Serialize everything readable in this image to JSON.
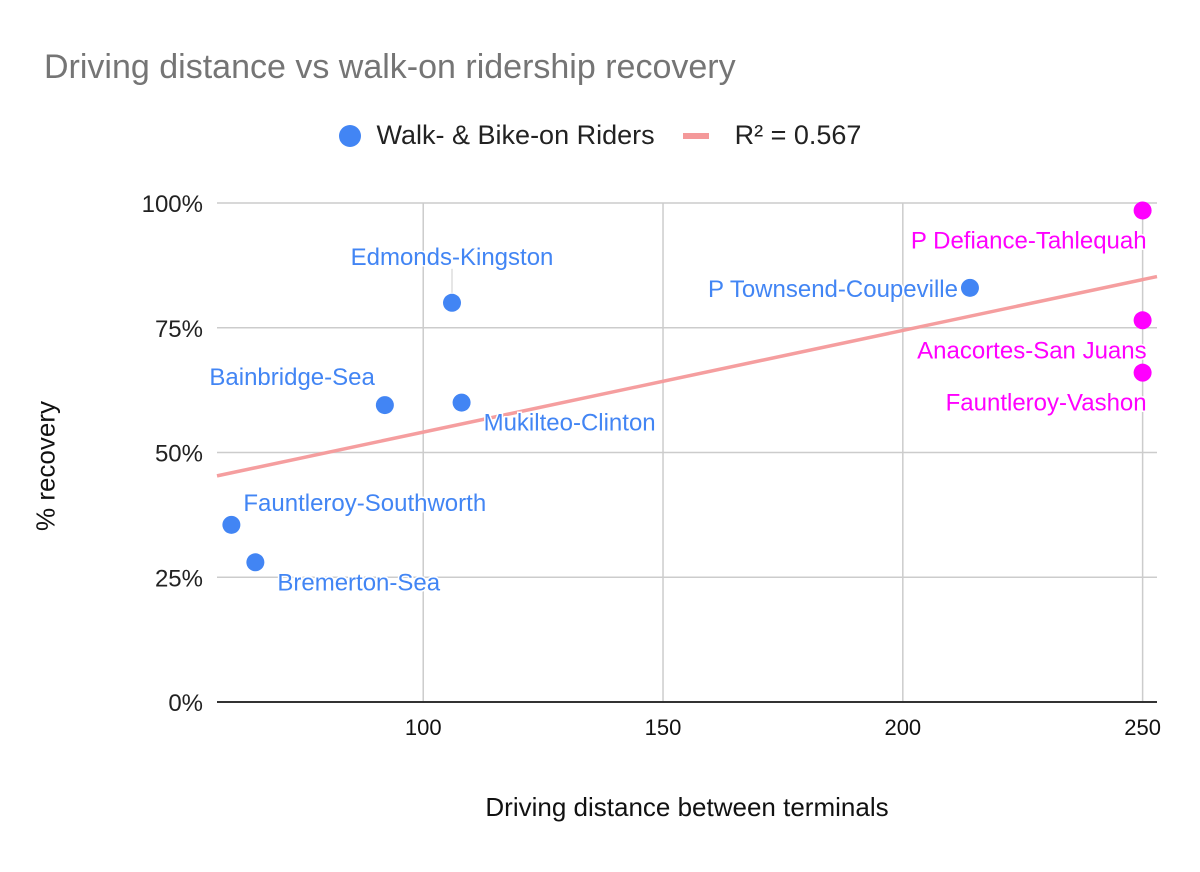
{
  "chart_data": {
    "type": "scatter",
    "title": "Driving distance vs walk-on ridership recovery",
    "xlabel": "Driving distance between terminals",
    "ylabel": "% recovery",
    "xlim": [
      57,
      253
    ],
    "ylim": [
      0,
      100
    ],
    "x_ticks": [
      100,
      150,
      200,
      250
    ],
    "x_tick_labels": [
      "100",
      "150",
      "200",
      "250"
    ],
    "y_ticks": [
      0,
      25,
      50,
      75,
      100
    ],
    "y_tick_labels": [
      "0%",
      "25%",
      "50%",
      "75%",
      "100%"
    ],
    "grid": true,
    "legend_position": "top",
    "legend": [
      {
        "label": "Walk- & Bike-on Riders",
        "kind": "dot",
        "color": "#4285f4"
      },
      {
        "label": "R² = 0.567",
        "kind": "line",
        "color": "#f4999a"
      }
    ],
    "series": [
      {
        "name": "Walk- & Bike-on Riders",
        "points": [
          {
            "label": "Fauntleroy-Southworth",
            "x": 60,
            "y": 35.5,
            "color": "#4285f4",
            "label_pos": "above-right"
          },
          {
            "label": "Bremerton-Sea",
            "x": 65,
            "y": 28,
            "color": "#4285f4",
            "label_pos": "below-right"
          },
          {
            "label": "Bainbridge-Sea",
            "x": 92,
            "y": 59.5,
            "color": "#4285f4",
            "label_pos": "above-left"
          },
          {
            "label": "Edmonds-Kingston",
            "x": 106,
            "y": 80,
            "color": "#4285f4",
            "label_pos": "above"
          },
          {
            "label": "Mukilteo-Clinton",
            "x": 108,
            "y": 60,
            "color": "#4285f4",
            "label_pos": "below-right"
          },
          {
            "label": "P Townsend-Coupeville",
            "x": 214,
            "y": 83,
            "color": "#4285f4",
            "label_pos": "left"
          },
          {
            "label": "P Defiance-Tahlequah",
            "x": 250,
            "y": 98.5,
            "color": "#ff00ff",
            "label_pos": "below-left"
          },
          {
            "label": "Anacortes-San Juans",
            "x": 250,
            "y": 76.5,
            "color": "#ff00ff",
            "label_pos": "below-left"
          },
          {
            "label": "Fauntleroy-Vashon",
            "x": 250,
            "y": 66,
            "color": "#ff00ff",
            "label_pos": "below-left"
          }
        ]
      }
    ],
    "trendline": {
      "label": "R² = 0.567",
      "type": "linear",
      "slope": 0.2038,
      "intercept": 33.7,
      "r_squared": 0.567,
      "color": "#f4999a"
    }
  }
}
